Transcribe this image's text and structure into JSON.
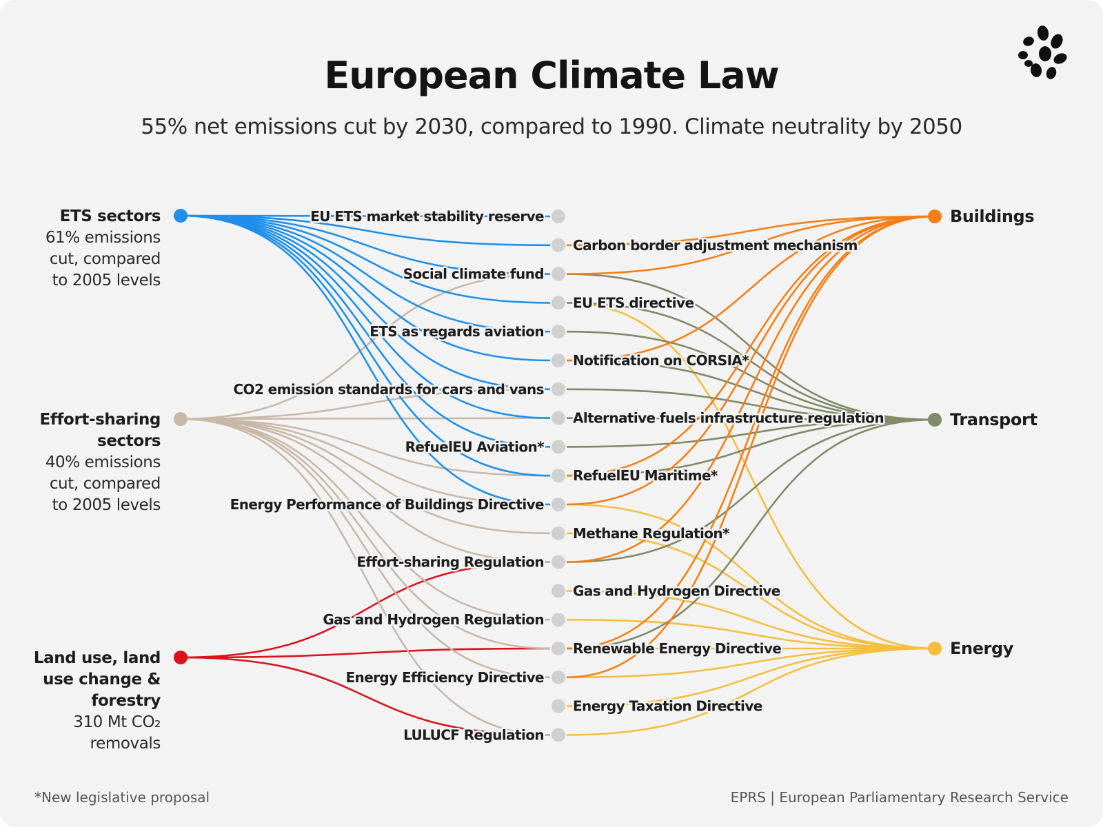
{
  "header": {
    "title": "European Climate Law",
    "subtitle": "55% net emissions cut by 2030, compared to 1990. Climate neutrality by 2050"
  },
  "left_nodes": [
    {
      "id": "ets",
      "title_lines": [
        "ETS sectors"
      ],
      "sub_lines": [
        "61% emissions",
        "cut, compared",
        "to 2005 levels"
      ],
      "color": "#1f8fea"
    },
    {
      "id": "esr",
      "title_lines": [
        "Effort-sharing",
        "sectors"
      ],
      "sub_lines": [
        "40% emissions",
        "cut, compared",
        "to 2005 levels"
      ],
      "color": "#c9b8a6"
    },
    {
      "id": "lulucf",
      "title_lines": [
        "Land use, land",
        "use change &",
        "forestry"
      ],
      "sub_lines": [
        "310 Mt CO₂",
        "removals"
      ],
      "color": "#d9141e"
    }
  ],
  "right_nodes": [
    {
      "id": "buildings",
      "label": "Buildings",
      "color": "#f57f17"
    },
    {
      "id": "transport",
      "label": "Transport",
      "color": "#808a66"
    },
    {
      "id": "energy",
      "label": "Energy",
      "color": "#f5be3f"
    }
  ],
  "middle_nodes": [
    {
      "id": "m1",
      "label": "EU ETS market stability reserve",
      "side": "left"
    },
    {
      "id": "m2",
      "label": "Carbon border adjustment mechanism",
      "side": "right"
    },
    {
      "id": "m3",
      "label": "Social climate fund",
      "side": "left"
    },
    {
      "id": "m4",
      "label": "EU ETS directive",
      "side": "right"
    },
    {
      "id": "m5",
      "label": "ETS as regards aviation",
      "side": "left"
    },
    {
      "id": "m6",
      "label": "Notification on CORSIA*",
      "side": "right"
    },
    {
      "id": "m7",
      "label": "CO2 emission standards for cars and vans",
      "side": "left"
    },
    {
      "id": "m8",
      "label": "Alternative fuels infrastructure regulation",
      "side": "right"
    },
    {
      "id": "m9",
      "label": "RefuelEU Aviation*",
      "side": "left"
    },
    {
      "id": "m10",
      "label": "RefuelEU Maritime*",
      "side": "right"
    },
    {
      "id": "m11",
      "label": "Energy Performance of Buildings Directive",
      "side": "left"
    },
    {
      "id": "m12",
      "label": "Methane Regulation*",
      "side": "right"
    },
    {
      "id": "m13",
      "label": "Effort-sharing Regulation",
      "side": "left"
    },
    {
      "id": "m14",
      "label": "Gas and Hydrogen Directive",
      "side": "right"
    },
    {
      "id": "m15",
      "label": "Gas and Hydrogen Regulation",
      "side": "left"
    },
    {
      "id": "m16",
      "label": "Renewable Energy Directive",
      "side": "right"
    },
    {
      "id": "m17",
      "label": "Energy Efficiency Directive",
      "side": "left"
    },
    {
      "id": "m18",
      "label": "Energy Taxation Directive",
      "side": "right"
    },
    {
      "id": "m19",
      "label": "LULUCF Regulation",
      "side": "left"
    }
  ],
  "left_links": {
    "ets": [
      "m1",
      "m2",
      "m3",
      "m4",
      "m5",
      "m6",
      "m7",
      "m8",
      "m9",
      "m10",
      "m11"
    ],
    "esr": [
      "m3",
      "m7",
      "m8",
      "m10",
      "m11",
      "m12",
      "m13",
      "m15",
      "m16",
      "m17",
      "m19"
    ],
    "lulucf": [
      "m13",
      "m16",
      "m19"
    ]
  },
  "right_links": {
    "buildings": [
      "m3",
      "m11",
      "m13",
      "m16",
      "m17",
      "m2",
      "m6",
      "m10"
    ],
    "transport": [
      "m3",
      "m4",
      "m5",
      "m7",
      "m8",
      "m9",
      "m10",
      "m13",
      "m6",
      "m16"
    ],
    "energy": [
      "m4",
      "m11",
      "m12",
      "m14",
      "m15",
      "m16",
      "m17",
      "m18",
      "m19"
    ]
  },
  "colors": {
    "background": "#f3f3f3",
    "middle_node": "#d0d0d0"
  },
  "footer": {
    "footnote": "*New legislative proposal",
    "source": "EPRS | European Parliamentary Research Service"
  }
}
